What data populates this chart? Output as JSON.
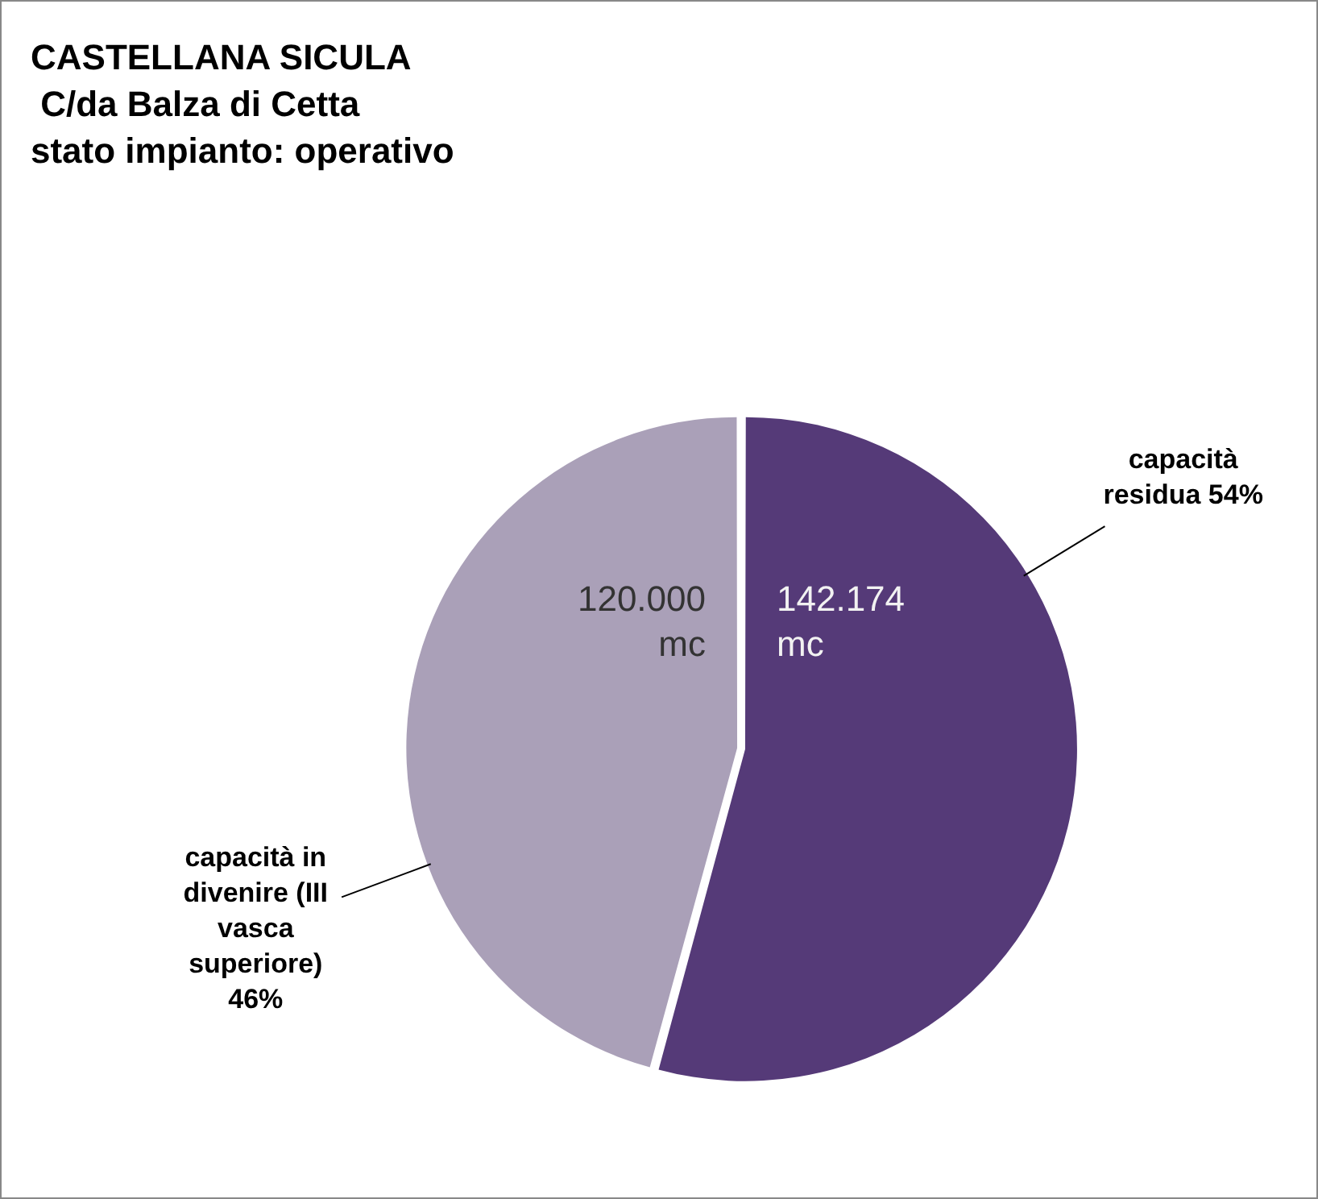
{
  "chart_data": {
    "type": "pie",
    "title": "CASTELLANA SICULA\n C/da Balza di Cetta\nstato impianto: operativo",
    "categories": [
      "capacità residua 54%",
      "capacità in divenire (III vasca superiore) 46%"
    ],
    "values": [
      142174,
      120000
    ],
    "value_labels": [
      "142.174 mc",
      "120.000 mc"
    ],
    "colors": [
      "#553a78",
      "#aaa0b8"
    ],
    "legend": false
  }
}
